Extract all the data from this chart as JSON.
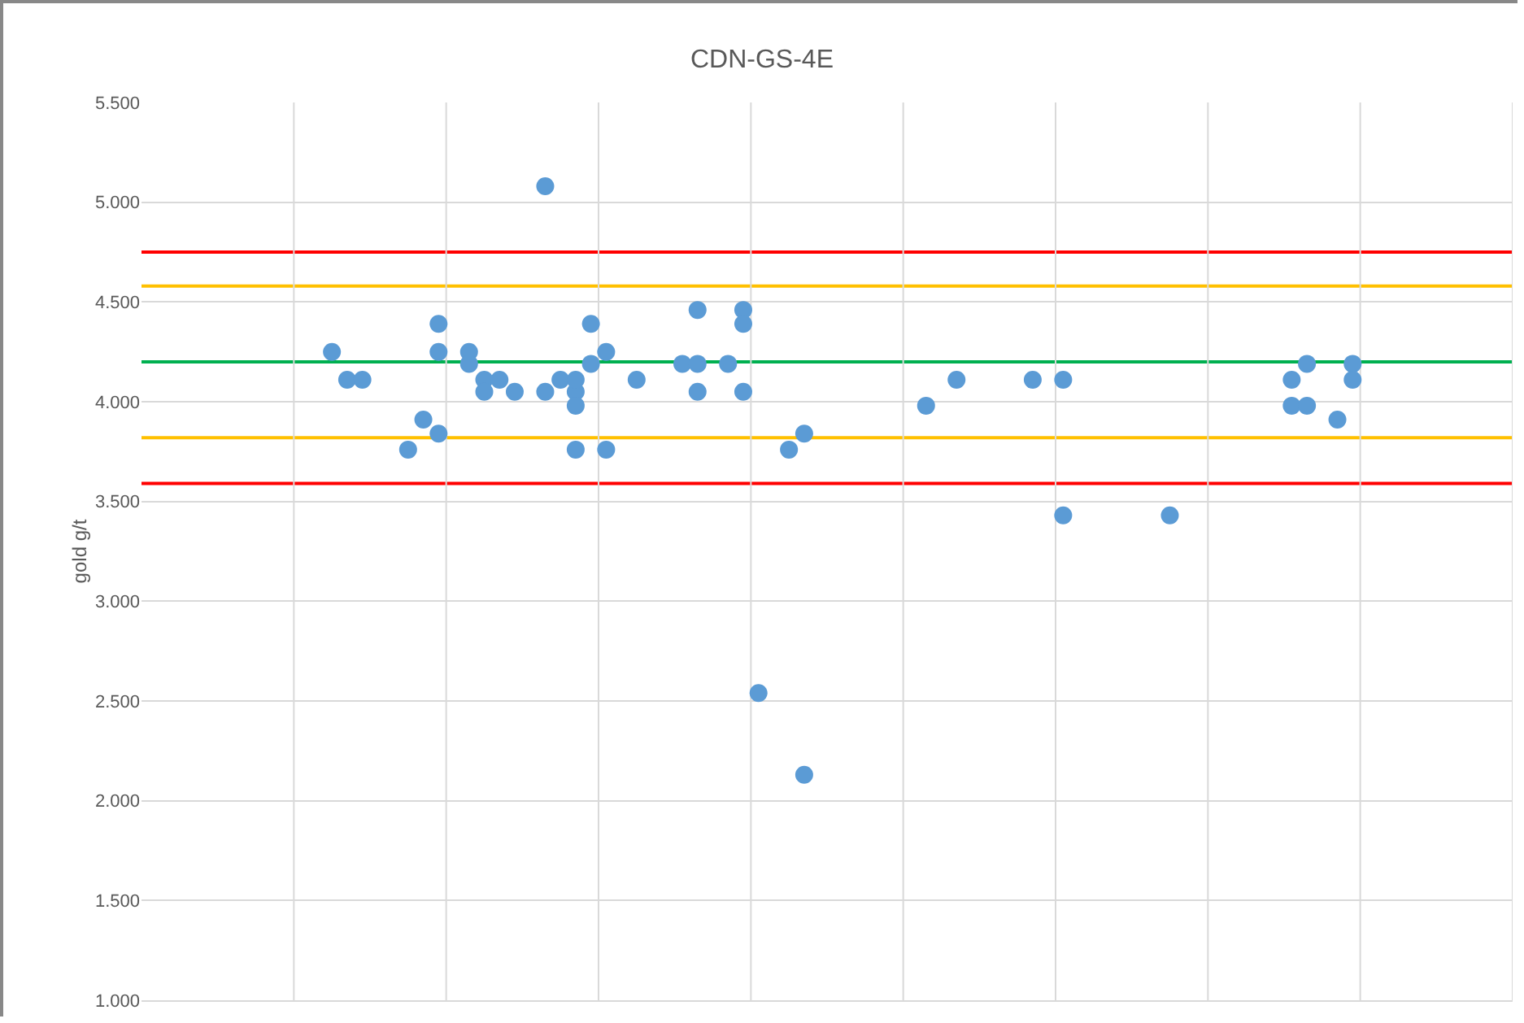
{
  "chart_data": {
    "type": "scatter",
    "title": "CDN-GS-4E",
    "ylabel": "gold g/t",
    "categories": [
      null,
      null,
      null,
      null,
      null,
      null,
      null,
      null,
      null,
      null,
      null,
      null,
      null,
      null,
      null,
      null,
      null,
      null,
      null,
      null,
      null,
      null,
      null,
      null,
      null,
      null,
      null,
      null,
      null,
      null,
      null,
      null,
      null,
      null,
      null,
      null,
      null,
      null,
      null,
      null,
      null,
      null,
      null,
      null,
      null,
      null,
      null,
      null,
      null,
      null,
      null,
      null,
      null,
      null,
      null,
      null,
      null,
      null,
      null,
      null,
      null,
      null,
      null,
      null,
      null,
      null,
      null,
      null,
      null,
      null,
      null,
      null,
      null,
      null,
      null,
      null,
      null,
      null,
      null,
      null,
      null,
      null,
      null,
      null,
      null,
      null,
      null,
      null,
      null,
      null
    ],
    "series": [
      {
        "color": "#5b9bd5",
        "values": [
          null,
          null,
          null,
          null,
          null,
          null,
          null,
          null,
          null,
          null,
          null,
          null,
          4.25,
          4.11,
          4.11,
          null,
          null,
          3.76,
          3.91,
          4.39,
          null,
          4.25,
          4.11,
          4.11,
          4.05,
          null,
          5.08,
          4.11,
          4.05,
          4.19,
          4.25,
          null,
          4.11,
          null,
          null,
          4.19,
          4.46,
          null,
          4.19,
          4.46,
          2.54,
          null,
          3.76,
          3.84,
          null,
          null,
          null,
          null,
          null,
          null,
          null,
          3.98,
          null,
          4.11,
          null,
          null,
          null,
          null,
          4.11,
          null,
          4.11,
          null,
          null,
          null,
          null,
          null,
          null,
          3.43,
          null,
          null,
          null,
          null,
          null,
          null,
          null,
          3.98,
          4.19,
          null,
          3.91,
          4.19,
          null,
          null,
          null,
          null,
          null,
          null,
          null,
          null,
          null,
          null
        ]
      },
      {
        "color": "#5b9bd5",
        "values": [
          null,
          null,
          null,
          null,
          null,
          null,
          null,
          null,
          null,
          null,
          null,
          null,
          null,
          null,
          null,
          null,
          null,
          null,
          null,
          4.25,
          null,
          4.19,
          4.05,
          null,
          null,
          null,
          4.05,
          null,
          4.11,
          4.39,
          3.76,
          null,
          null,
          null,
          null,
          null,
          4.19,
          null,
          null,
          4.39,
          null,
          null,
          null,
          2.13,
          null,
          null,
          null,
          null,
          null,
          null,
          null,
          null,
          null,
          null,
          null,
          null,
          null,
          null,
          null,
          null,
          3.43,
          null,
          null,
          null,
          null,
          null,
          null,
          null,
          null,
          null,
          null,
          null,
          null,
          null,
          null,
          4.11,
          null,
          null,
          null,
          4.11,
          null,
          null,
          null,
          null,
          null,
          null,
          null,
          null,
          null,
          null
        ]
      },
      {
        "color": "#5b9bd5",
        "values": [
          null,
          null,
          null,
          null,
          null,
          null,
          null,
          null,
          null,
          null,
          null,
          null,
          null,
          null,
          null,
          null,
          null,
          null,
          null,
          3.84,
          null,
          null,
          null,
          null,
          null,
          null,
          null,
          null,
          3.98,
          null,
          null,
          null,
          null,
          null,
          null,
          null,
          4.05,
          null,
          null,
          4.05,
          null,
          null,
          null,
          null,
          null,
          null,
          null,
          null,
          null,
          null,
          null,
          null,
          null,
          null,
          null,
          null,
          null,
          null,
          null,
          null,
          null,
          null,
          null,
          null,
          null,
          null,
          null,
          null,
          null,
          null,
          null,
          null,
          null,
          null,
          null,
          null,
          3.98,
          null,
          null,
          null,
          null,
          null,
          null,
          null,
          null,
          null,
          null,
          null,
          null,
          null
        ]
      },
      {
        "color": "#5b9bd5",
        "values": [
          null,
          null,
          null,
          null,
          null,
          null,
          null,
          null,
          null,
          null,
          null,
          null,
          null,
          null,
          null,
          null,
          null,
          null,
          null,
          null,
          null,
          null,
          null,
          null,
          null,
          null,
          null,
          null,
          3.76,
          null,
          null,
          null,
          null,
          null,
          null,
          null,
          null,
          null,
          null,
          null,
          null,
          null,
          null,
          null,
          null,
          null,
          null,
          null,
          null,
          null,
          null,
          null,
          null,
          null,
          null,
          null,
          null,
          null,
          null,
          null,
          null,
          null,
          null,
          null,
          null,
          null,
          null,
          null,
          null,
          null,
          null,
          null,
          null,
          null,
          null,
          null,
          null,
          null,
          null,
          null,
          null,
          null,
          null,
          null,
          null,
          null,
          null,
          null,
          null,
          null
        ]
      }
    ],
    "ylim": [
      1,
      5.5
    ],
    "yticks": [
      {
        "value": 1,
        "label": "1.000"
      },
      {
        "value": 1.5,
        "label": "1.500"
      },
      {
        "value": 2,
        "label": "2.000"
      },
      {
        "value": 2.5,
        "label": "2.500"
      },
      {
        "value": 3,
        "label": "3.000"
      },
      {
        "value": 3.5,
        "label": "3.500"
      },
      {
        "value": 4,
        "label": "4.000"
      },
      {
        "value": 4.5,
        "label": "4.500"
      },
      {
        "value": 5,
        "label": "5.000"
      },
      {
        "value": 5.5,
        "label": "5.500"
      }
    ],
    "ref_lines": [
      {
        "axis": "y",
        "value": 4.75,
        "color": "#ff0000"
      },
      {
        "axis": "y",
        "value": 4.58,
        "color": "#ffc000"
      },
      {
        "axis": "y",
        "value": 4.2,
        "color": "#00b050"
      },
      {
        "axis": "y",
        "value": 3.82,
        "color": "#ffc000"
      },
      {
        "axis": "y",
        "value": 3.59,
        "color": "#ff0000"
      }
    ],
    "grid": true,
    "marker": "circle",
    "tick_labels": "y"
  }
}
